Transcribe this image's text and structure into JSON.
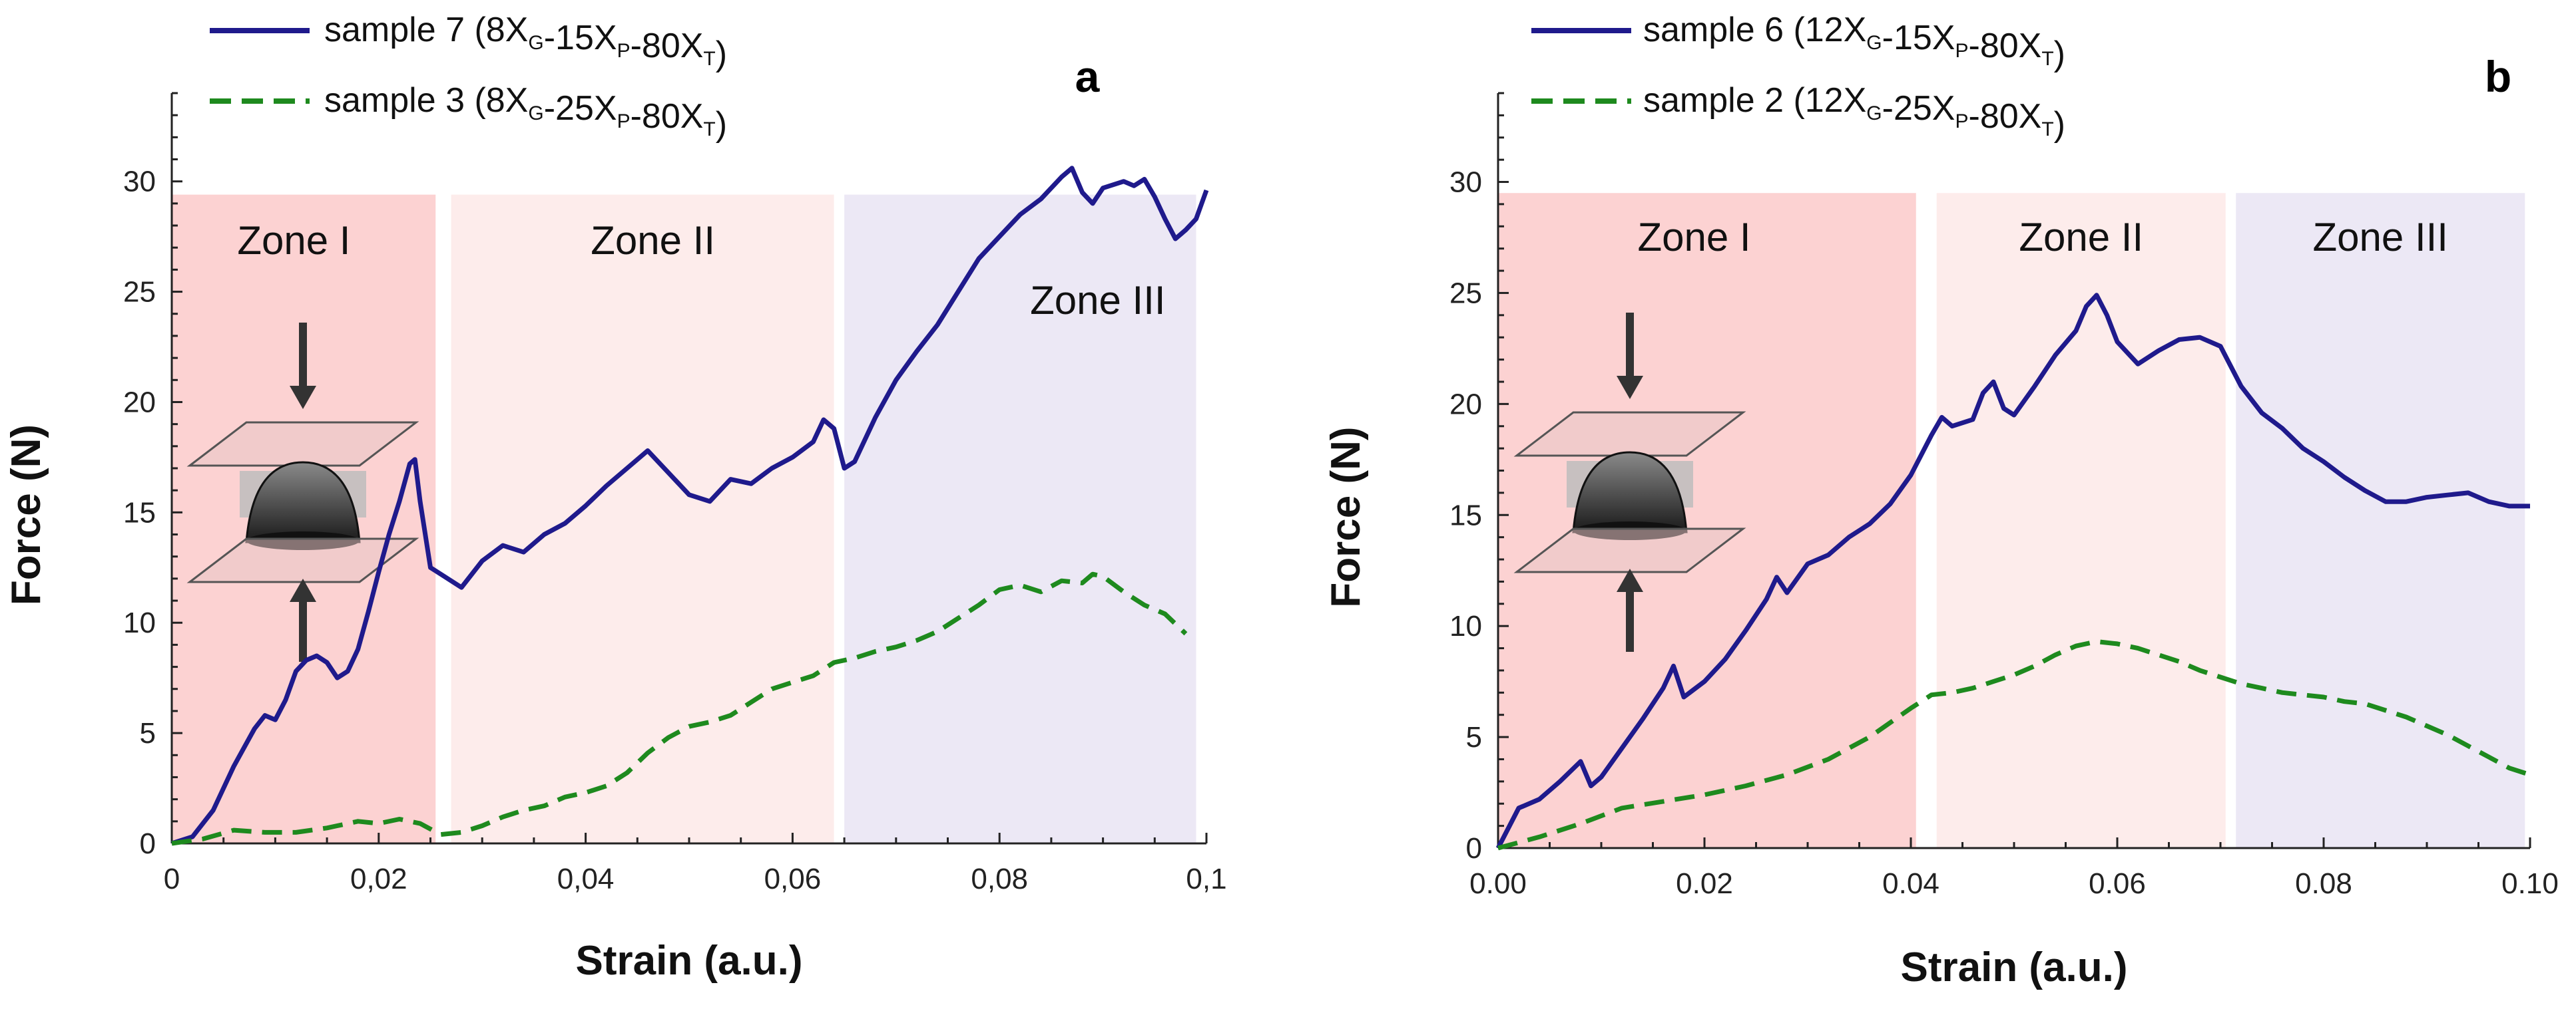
{
  "chart_data": [
    {
      "panel": "a",
      "type": "line",
      "xlabel": "Strain (a.u.)",
      "ylabel": "Force (N)",
      "xlim": [
        0,
        0.1
      ],
      "ylim": [
        0,
        34
      ],
      "xticks": [
        0,
        0.02,
        0.04,
        0.06,
        0.08,
        0.1
      ],
      "xtick_labels": [
        "0",
        "0,02",
        "0,04",
        "0,06",
        "0,08",
        "0,1"
      ],
      "yticks": [
        0,
        5,
        10,
        15,
        20,
        25,
        30
      ],
      "ytick_labels": [
        "0",
        "5",
        "10",
        "15",
        "20",
        "25",
        "30"
      ],
      "zones": [
        {
          "name": "Zone I",
          "x0": 0.0,
          "x1": 0.0255,
          "top": 29.4,
          "color": "#fcd2d2",
          "label_x": 0.0118,
          "label_y": 26.7
        },
        {
          "name": "Zone II",
          "x0": 0.027,
          "x1": 0.064,
          "top": 29.4,
          "color": "#fdeceb",
          "label_x": 0.0465,
          "label_y": 26.7
        },
        {
          "name": "Zone III",
          "x0": 0.065,
          "x1": 0.099,
          "top": 29.4,
          "color": "#ece8f5",
          "label_x": 0.0895,
          "label_y": 24.0
        }
      ],
      "series": [
        {
          "name": "sample 7",
          "composition": [
            {
              "t": "8X"
            },
            {
              "s": "G"
            },
            {
              "t": "-15X"
            },
            {
              "s": "P"
            },
            {
              "t": "-80X"
            },
            {
              "s": "T"
            }
          ],
          "color": "#1f1a8c",
          "dash": "solid",
          "x": [
            0,
            0.002,
            0.004,
            0.006,
            0.008,
            0.009,
            0.01,
            0.011,
            0.012,
            0.013,
            0.014,
            0.015,
            0.016,
            0.017,
            0.018,
            0.019,
            0.02,
            0.021,
            0.022,
            0.023,
            0.0235,
            0.024,
            0.025,
            0.026,
            0.028,
            0.03,
            0.032,
            0.034,
            0.036,
            0.038,
            0.04,
            0.042,
            0.044,
            0.046,
            0.048,
            0.05,
            0.052,
            0.054,
            0.056,
            0.058,
            0.06,
            0.062,
            0.063,
            0.064,
            0.065,
            0.066,
            0.068,
            0.07,
            0.072,
            0.074,
            0.076,
            0.078,
            0.08,
            0.082,
            0.084,
            0.086,
            0.087,
            0.088,
            0.089,
            0.09,
            0.092,
            0.093,
            0.094,
            0.095,
            0.096,
            0.097,
            0.098,
            0.099,
            0.1
          ],
          "y": [
            0,
            0.3,
            1.5,
            3.5,
            5.2,
            5.8,
            5.6,
            6.5,
            7.8,
            8.3,
            8.5,
            8.2,
            7.5,
            7.8,
            8.8,
            10.5,
            12.3,
            14.0,
            15.5,
            17.2,
            17.4,
            15.5,
            12.5,
            12.2,
            11.6,
            12.8,
            13.5,
            13.2,
            14.0,
            14.5,
            15.3,
            16.2,
            17.0,
            17.8,
            16.8,
            15.8,
            15.5,
            16.5,
            16.3,
            17.0,
            17.5,
            18.2,
            19.2,
            18.8,
            17.0,
            17.3,
            19.3,
            21.0,
            22.3,
            23.5,
            25.0,
            26.5,
            27.5,
            28.5,
            29.2,
            30.2,
            30.6,
            29.5,
            29.0,
            29.7,
            30.0,
            29.8,
            30.1,
            29.3,
            28.3,
            27.4,
            27.8,
            28.3,
            29.6
          ]
        },
        {
          "name": "sample 3",
          "composition": [
            {
              "t": "8X"
            },
            {
              "s": "G"
            },
            {
              "t": "-25X"
            },
            {
              "s": "P"
            },
            {
              "t": "-80X"
            },
            {
              "s": "T"
            }
          ],
          "color": "#1e8a1e",
          "dash": "dashed",
          "x": [
            0,
            0.003,
            0.006,
            0.009,
            0.012,
            0.015,
            0.018,
            0.02,
            0.022,
            0.024,
            0.026,
            0.028,
            0.03,
            0.032,
            0.034,
            0.036,
            0.038,
            0.04,
            0.042,
            0.044,
            0.046,
            0.048,
            0.05,
            0.052,
            0.054,
            0.056,
            0.058,
            0.06,
            0.062,
            0.064,
            0.066,
            0.068,
            0.07,
            0.072,
            0.074,
            0.076,
            0.078,
            0.08,
            0.082,
            0.084,
            0.086,
            0.088,
            0.089,
            0.09,
            0.092,
            0.094,
            0.096,
            0.098
          ],
          "y": [
            0,
            0.2,
            0.6,
            0.5,
            0.5,
            0.7,
            1.0,
            0.9,
            1.1,
            0.9,
            0.4,
            0.5,
            0.8,
            1.2,
            1.5,
            1.7,
            2.1,
            2.3,
            2.6,
            3.2,
            4.1,
            4.8,
            5.3,
            5.5,
            5.8,
            6.4,
            7.0,
            7.3,
            7.6,
            8.2,
            8.4,
            8.7,
            8.9,
            9.2,
            9.6,
            10.2,
            10.8,
            11.5,
            11.7,
            11.4,
            11.9,
            11.8,
            12.2,
            12.1,
            11.4,
            10.8,
            10.4,
            9.5
          ]
        }
      ]
    },
    {
      "panel": "b",
      "type": "line",
      "xlabel": "Strain (a.u.)",
      "ylabel": "Force (N)",
      "xlim": [
        0,
        0.1
      ],
      "ylim": [
        0,
        34
      ],
      "xticks": [
        0,
        0.02,
        0.04,
        0.06,
        0.08,
        0.1
      ],
      "xtick_labels": [
        "0.00",
        "0.02",
        "0.04",
        "0.06",
        "0.08",
        "0.10"
      ],
      "yticks": [
        0,
        5,
        10,
        15,
        20,
        25,
        30
      ],
      "ytick_labels": [
        "0",
        "5",
        "10",
        "15",
        "20",
        "25",
        "30"
      ],
      "zones": [
        {
          "name": "Zone I",
          "x0": 0.0,
          "x1": 0.0405,
          "top": 29.5,
          "color": "#fcd2d2",
          "label_x": 0.019,
          "label_y": 26.9
        },
        {
          "name": "Zone II",
          "x0": 0.0425,
          "x1": 0.0705,
          "top": 29.5,
          "color": "#fdeceb",
          "label_x": 0.0565,
          "label_y": 26.9
        },
        {
          "name": "Zone III",
          "x0": 0.0715,
          "x1": 0.0995,
          "top": 29.5,
          "color": "#ece8f5",
          "label_x": 0.0855,
          "label_y": 26.9
        }
      ],
      "series": [
        {
          "name": "sample 6",
          "composition": [
            {
              "t": "12X"
            },
            {
              "s": "G"
            },
            {
              "t": "-15X"
            },
            {
              "s": "P"
            },
            {
              "t": "-80X"
            },
            {
              "s": "T"
            }
          ],
          "color": "#1f1a8c",
          "dash": "solid",
          "x": [
            0,
            0.002,
            0.004,
            0.006,
            0.008,
            0.009,
            0.01,
            0.012,
            0.014,
            0.016,
            0.017,
            0.018,
            0.02,
            0.022,
            0.024,
            0.026,
            0.027,
            0.028,
            0.03,
            0.032,
            0.034,
            0.036,
            0.038,
            0.04,
            0.042,
            0.043,
            0.044,
            0.046,
            0.047,
            0.048,
            0.049,
            0.05,
            0.052,
            0.054,
            0.056,
            0.057,
            0.058,
            0.059,
            0.06,
            0.062,
            0.064,
            0.066,
            0.068,
            0.07,
            0.072,
            0.074,
            0.076,
            0.078,
            0.08,
            0.082,
            0.084,
            0.086,
            0.088,
            0.09,
            0.092,
            0.094,
            0.096,
            0.098,
            0.1
          ],
          "y": [
            0,
            1.8,
            2.2,
            3.0,
            3.9,
            2.8,
            3.2,
            4.5,
            5.8,
            7.2,
            8.2,
            6.8,
            7.5,
            8.5,
            9.8,
            11.2,
            12.2,
            11.5,
            12.8,
            13.2,
            14.0,
            14.6,
            15.5,
            16.8,
            18.6,
            19.4,
            19.0,
            19.3,
            20.5,
            21.0,
            19.8,
            19.5,
            20.8,
            22.2,
            23.3,
            24.4,
            24.9,
            24.0,
            22.8,
            21.8,
            22.4,
            22.9,
            23.0,
            22.6,
            20.8,
            19.6,
            18.9,
            18.0,
            17.4,
            16.7,
            16.1,
            15.6,
            15.6,
            15.8,
            15.9,
            16.0,
            15.6,
            15.4,
            15.4
          ]
        },
        {
          "name": "sample 2",
          "composition": [
            {
              "t": "12X"
            },
            {
              "s": "G"
            },
            {
              "t": "-25X"
            },
            {
              "s": "P"
            },
            {
              "t": "-80X"
            },
            {
              "s": "T"
            }
          ],
          "color": "#1e8a1e",
          "dash": "dashed",
          "x": [
            0,
            0.004,
            0.008,
            0.012,
            0.016,
            0.02,
            0.024,
            0.028,
            0.032,
            0.036,
            0.04,
            0.042,
            0.044,
            0.046,
            0.048,
            0.05,
            0.052,
            0.054,
            0.056,
            0.058,
            0.06,
            0.062,
            0.064,
            0.066,
            0.068,
            0.07,
            0.072,
            0.074,
            0.076,
            0.078,
            0.08,
            0.082,
            0.084,
            0.086,
            0.088,
            0.09,
            0.092,
            0.094,
            0.096,
            0.098,
            0.1
          ],
          "y": [
            0,
            0.5,
            1.1,
            1.8,
            2.1,
            2.4,
            2.8,
            3.3,
            4.0,
            5.0,
            6.3,
            6.9,
            7.0,
            7.2,
            7.5,
            7.8,
            8.2,
            8.7,
            9.1,
            9.3,
            9.2,
            9.0,
            8.7,
            8.4,
            8.0,
            7.7,
            7.4,
            7.2,
            7.0,
            6.9,
            6.8,
            6.6,
            6.5,
            6.2,
            5.9,
            5.5,
            5.1,
            4.6,
            4.1,
            3.6,
            3.3
          ]
        }
      ]
    }
  ]
}
